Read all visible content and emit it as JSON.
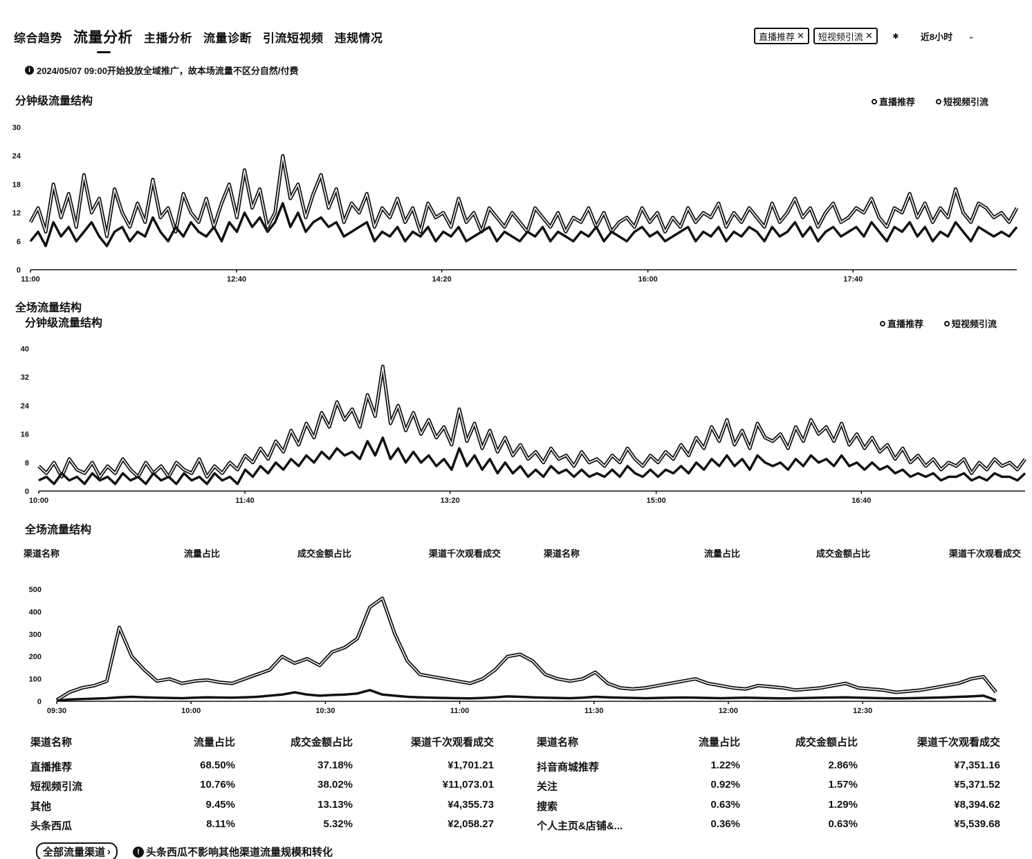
{
  "tabs": [
    "综合趋势",
    "流量分析",
    "主播分析",
    "流量诊断",
    "引流短视频",
    "违规情况"
  ],
  "active_tab_index": 1,
  "filters": {
    "chips": [
      "直播推荐",
      "短视频引流"
    ],
    "time_range": "近8小时"
  },
  "notice": "2024/05/07 09:00开始投放全域推广，故本场流量不区分自然/付费",
  "section1": {
    "title": "分钟级流量结构",
    "legend": [
      "直播推荐",
      "短视频引流"
    ]
  },
  "section2": {
    "outer_title": "全场流量结构",
    "title": "分钟级流量结构",
    "legend": [
      "直播推荐",
      "短视频引流"
    ]
  },
  "section3": {
    "title": "全场流量结构",
    "headers": [
      "渠道名称",
      "流量占比",
      "成交金额占比",
      "渠道千次观看成交",
      "渠道名称",
      "流量占比",
      "成交金额占比",
      "渠道千次观看成交"
    ]
  },
  "chart_data": [
    {
      "type": "line",
      "title": "分钟级流量结构",
      "yticks": [
        "0",
        "6",
        "12",
        "18",
        "24",
        "30"
      ],
      "ylim": [
        0,
        30
      ],
      "xticks": [
        "11:00",
        "12:40",
        "14:20",
        "16:00",
        "17:40"
      ],
      "series": [
        {
          "name": "直播推荐",
          "values": [
            10,
            13,
            8,
            18,
            11,
            16,
            9,
            20,
            12,
            15,
            7,
            17,
            12,
            9,
            14,
            10,
            19,
            11,
            13,
            8,
            16,
            12,
            10,
            15,
            9,
            14,
            18,
            11,
            21,
            13,
            17,
            9,
            12,
            24,
            15,
            18,
            11,
            16,
            20,
            13,
            17,
            10,
            14,
            12,
            16,
            9,
            13,
            11,
            15,
            10,
            13,
            8,
            14,
            11,
            12,
            9,
            15,
            10,
            12,
            8,
            13,
            11,
            9,
            12,
            10,
            8,
            13,
            11,
            9,
            12,
            8,
            11,
            10,
            13,
            9,
            12,
            8,
            10,
            11,
            9,
            13,
            10,
            12,
            8,
            11,
            9,
            13,
            10,
            12,
            11,
            14,
            9,
            12,
            10,
            13,
            11,
            9,
            14,
            10,
            12,
            15,
            11,
            13,
            9,
            12,
            14,
            10,
            11,
            13,
            12,
            15,
            11,
            9,
            13,
            12,
            16,
            11,
            14,
            10,
            13,
            11,
            17,
            12,
            10,
            14,
            13,
            11,
            12,
            10,
            13
          ]
        },
        {
          "name": "短视频引流",
          "values": [
            6,
            8,
            5,
            10,
            7,
            9,
            6,
            8,
            10,
            7,
            5,
            8,
            9,
            6,
            8,
            7,
            11,
            8,
            6,
            9,
            7,
            10,
            8,
            7,
            9,
            6,
            10,
            8,
            12,
            9,
            11,
            8,
            10,
            14,
            9,
            12,
            8,
            10,
            11,
            9,
            10,
            7,
            8,
            9,
            10,
            6,
            8,
            7,
            9,
            6,
            8,
            7,
            9,
            6,
            8,
            7,
            9,
            6,
            7,
            8,
            9,
            6,
            8,
            7,
            6,
            8,
            7,
            9,
            6,
            8,
            7,
            6,
            8,
            7,
            9,
            6,
            8,
            7,
            6,
            8,
            9,
            7,
            8,
            6,
            7,
            8,
            9,
            6,
            8,
            7,
            9,
            6,
            8,
            7,
            9,
            8,
            6,
            9,
            7,
            8,
            10,
            7,
            9,
            6,
            8,
            9,
            7,
            8,
            9,
            7,
            10,
            8,
            6,
            9,
            8,
            10,
            7,
            9,
            6,
            8,
            7,
            10,
            8,
            6,
            9,
            8,
            7,
            8,
            7,
            9
          ]
        }
      ]
    },
    {
      "type": "line",
      "title": "分钟级流量结构",
      "yticks": [
        "0",
        "8",
        "16",
        "24",
        "32",
        "40"
      ],
      "ylim": [
        0,
        40
      ],
      "xticks": [
        "10:00",
        "11:40",
        "13:20",
        "15:00",
        "16:40"
      ],
      "series": [
        {
          "name": "直播推荐",
          "values": [
            7,
            5,
            8,
            4,
            9,
            6,
            5,
            8,
            4,
            7,
            5,
            9,
            6,
            4,
            8,
            5,
            7,
            4,
            8,
            6,
            5,
            9,
            4,
            7,
            5,
            8,
            6,
            10,
            8,
            12,
            9,
            14,
            11,
            17,
            13,
            19,
            15,
            22,
            18,
            25,
            20,
            23,
            18,
            27,
            21,
            35,
            19,
            24,
            17,
            22,
            16,
            20,
            15,
            18,
            13,
            23,
            14,
            19,
            12,
            17,
            11,
            15,
            10,
            13,
            9,
            11,
            8,
            12,
            9,
            10,
            7,
            11,
            8,
            9,
            7,
            10,
            8,
            12,
            9,
            7,
            10,
            8,
            11,
            9,
            13,
            10,
            15,
            12,
            18,
            14,
            20,
            13,
            17,
            12,
            19,
            15,
            14,
            16,
            12,
            18,
            14,
            20,
            16,
            18,
            14,
            19,
            13,
            16,
            12,
            15,
            11,
            13,
            9,
            12,
            8,
            10,
            7,
            9,
            6,
            8,
            7,
            9,
            5,
            8,
            6,
            9,
            7,
            8,
            6,
            9
          ]
        },
        {
          "name": "短视频引流",
          "values": [
            3,
            4,
            2,
            5,
            3,
            4,
            2,
            5,
            3,
            4,
            2,
            5,
            3,
            4,
            2,
            5,
            3,
            4,
            2,
            5,
            3,
            4,
            2,
            5,
            3,
            4,
            2,
            6,
            4,
            7,
            5,
            8,
            6,
            9,
            7,
            10,
            8,
            11,
            9,
            12,
            10,
            11,
            9,
            14,
            10,
            15,
            9,
            12,
            8,
            11,
            8,
            10,
            7,
            9,
            6,
            12,
            7,
            10,
            6,
            9,
            5,
            8,
            5,
            7,
            4,
            6,
            4,
            7,
            5,
            6,
            4,
            6,
            4,
            5,
            4,
            6,
            4,
            7,
            5,
            4,
            6,
            4,
            6,
            5,
            7,
            5,
            8,
            6,
            9,
            7,
            10,
            7,
            9,
            6,
            10,
            8,
            7,
            8,
            6,
            9,
            7,
            10,
            8,
            9,
            7,
            10,
            7,
            8,
            6,
            8,
            6,
            7,
            5,
            6,
            4,
            5,
            4,
            5,
            3,
            4,
            4,
            5,
            3,
            4,
            3,
            5,
            4,
            4,
            3,
            5
          ]
        }
      ]
    },
    {
      "type": "line",
      "yticks": [
        "0",
        "100",
        "200",
        "300",
        "400",
        "500"
      ],
      "ylim": [
        0,
        500
      ],
      "xticks": [
        "09:30",
        "10:00",
        "10:30",
        "11:00",
        "11:30",
        "12:00",
        "12:30"
      ],
      "series": [
        {
          "name": "直播推荐",
          "values": [
            5,
            40,
            60,
            70,
            90,
            330,
            200,
            140,
            90,
            100,
            80,
            90,
            95,
            85,
            80,
            100,
            120,
            140,
            200,
            170,
            190,
            160,
            220,
            240,
            280,
            420,
            460,
            300,
            180,
            120,
            110,
            100,
            90,
            80,
            100,
            140,
            200,
            210,
            180,
            120,
            100,
            90,
            100,
            130,
            80,
            60,
            55,
            60,
            70,
            80,
            90,
            100,
            80,
            70,
            60,
            55,
            70,
            65,
            60,
            50,
            55,
            60,
            70,
            80,
            60,
            55,
            50,
            40,
            45,
            50,
            60,
            70,
            80,
            100,
            110,
            40
          ]
        },
        {
          "name": "短视频引流",
          "values": [
            3,
            8,
            10,
            12,
            14,
            18,
            20,
            18,
            16,
            15,
            14,
            16,
            18,
            17,
            16,
            18,
            20,
            25,
            30,
            40,
            30,
            25,
            28,
            30,
            35,
            50,
            30,
            25,
            20,
            18,
            16,
            15,
            14,
            13,
            15,
            18,
            22,
            20,
            18,
            16,
            15,
            14,
            16,
            20,
            18,
            16,
            15,
            14,
            15,
            16,
            17,
            16,
            15,
            14,
            15,
            16,
            15,
            14,
            13,
            14,
            15,
            16,
            17,
            18,
            16,
            15,
            14,
            13,
            14,
            15,
            16,
            18,
            20,
            22,
            25,
            5
          ]
        }
      ]
    }
  ],
  "table": {
    "headers": [
      "渠道名称",
      "流量占比",
      "成交金额占比",
      "渠道千次观看成交",
      "渠道名称",
      "流量占比",
      "成交金额占比",
      "渠道千次观看成交"
    ],
    "rows": [
      [
        "直播推荐",
        "68.50%",
        "37.18%",
        "¥1,701.21",
        "抖音商城推荐",
        "1.22%",
        "2.86%",
        "¥7,351.16"
      ],
      [
        "短视频引流",
        "10.76%",
        "38.02%",
        "¥11,073.01",
        "关注",
        "0.92%",
        "1.57%",
        "¥5,371.52"
      ],
      [
        "其他",
        "9.45%",
        "13.13%",
        "¥4,355.73",
        "搜索",
        "0.63%",
        "1.29%",
        "¥8,394.62"
      ],
      [
        "头条西瓜",
        "8.11%",
        "5.32%",
        "¥2,058.27",
        "个人主页&店铺&...",
        "0.36%",
        "0.63%",
        "¥5,539.68"
      ]
    ]
  },
  "footer": {
    "button": "全部流量渠道",
    "note": "头条西瓜不影响其他渠道流量规模和转化"
  }
}
